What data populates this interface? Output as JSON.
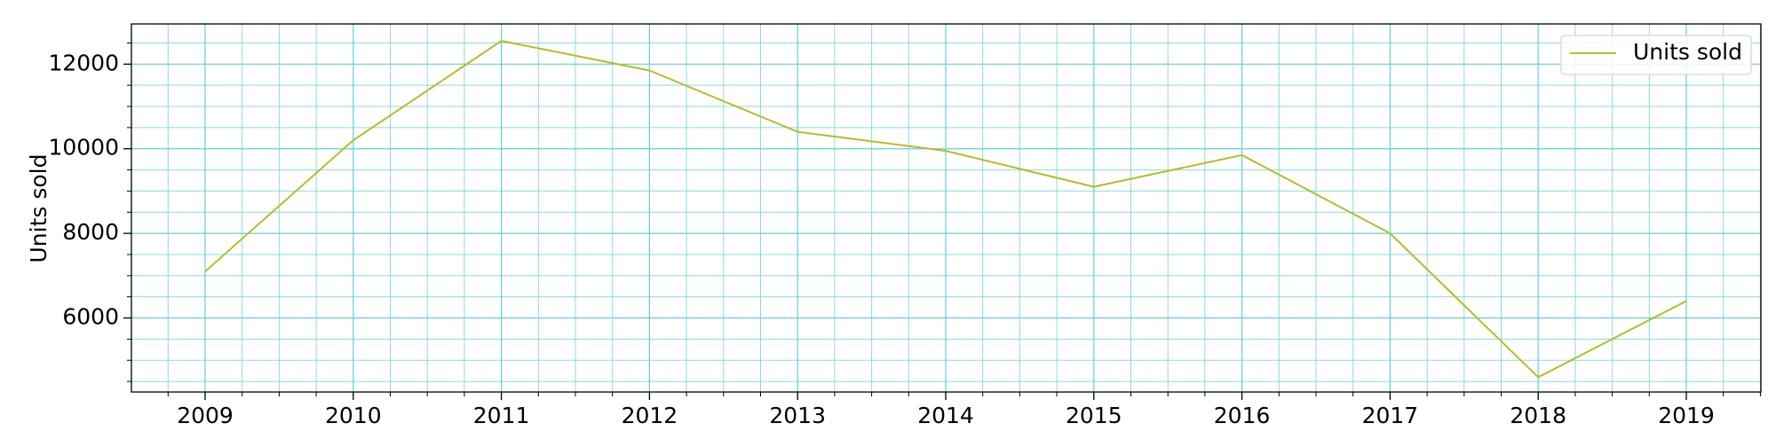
{
  "chart_data": {
    "type": "line",
    "title": "",
    "xlabel": "",
    "ylabel": "Units sold",
    "x": [
      "2009",
      "2010",
      "2011",
      "2012",
      "2013",
      "2014",
      "2015",
      "2016",
      "2017",
      "2018",
      "2019"
    ],
    "series": [
      {
        "name": "Units sold",
        "color": "#b5bd28",
        "values": [
          7100,
          10200,
          12550,
          11850,
          10400,
          9950,
          9100,
          9850,
          8000,
          4600,
          6400
        ]
      }
    ],
    "ylim": [
      4250,
      12950
    ],
    "yticks": [
      6000,
      8000,
      10000,
      12000
    ],
    "grid": true,
    "grid_color": "#62cfd8",
    "minor_grid": true,
    "legend_position": "top-right"
  }
}
